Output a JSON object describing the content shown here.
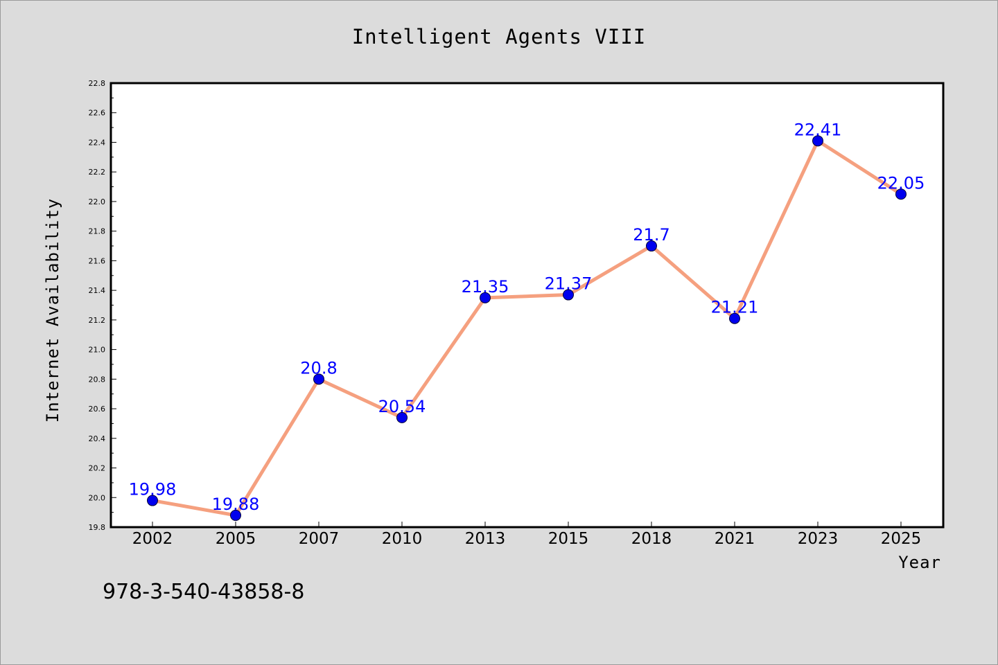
{
  "footer": {
    "text": "978-3-540-43858-8"
  },
  "colors": {
    "line": "#f5a07f",
    "marker": "#0000ee",
    "label": "#0000ff",
    "background": "#dcdcdc",
    "plot": "#ffffff"
  },
  "chart_data": {
    "type": "line",
    "title": "Intelligent Agents VIII",
    "xlabel": "Year",
    "ylabel": "Internet Availability",
    "categories": [
      "2002",
      "2005",
      "2007",
      "2010",
      "2013",
      "2015",
      "2018",
      "2021",
      "2023",
      "2025"
    ],
    "series": [
      {
        "values": [
          19.98,
          19.88,
          20.8,
          20.54,
          21.35,
          21.37,
          21.7,
          21.21,
          22.41,
          22.05
        ]
      }
    ],
    "data_labels": [
      "19.98",
      "19.88",
      "20.8",
      "20.54",
      "21.35",
      "21.37",
      "21.7",
      "21.21",
      "22.41",
      "22.05"
    ],
    "ylim": [
      19.8,
      22.8
    ],
    "yticks": [
      "19.8",
      "20.0",
      "20.2",
      "20.4",
      "20.6",
      "20.8",
      "21.0",
      "21.2",
      "21.4",
      "21.6",
      "21.8",
      "22.0",
      "22.2",
      "22.4",
      "22.6",
      "22.8"
    ],
    "grid": false,
    "legend": "none"
  }
}
